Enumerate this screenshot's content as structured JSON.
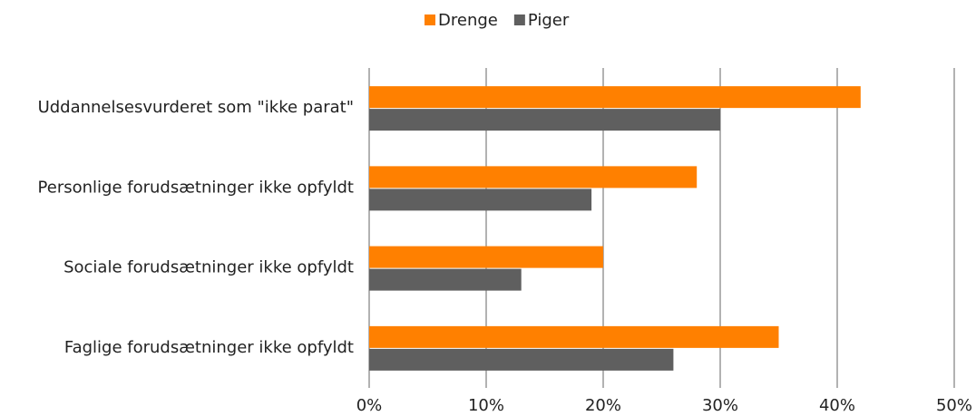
{
  "chart_data": {
    "type": "bar",
    "orientation": "horizontal",
    "categories": [
      "Uddannelsesvurderet som \"ikke parat\"",
      "Personlige forudsætninger ikke opfyldt",
      "Sociale forudsætninger ikke opfyldt",
      "Faglige forudsætninger ikke opfyldt"
    ],
    "series": [
      {
        "name": "Drenge",
        "color": "#ff8000",
        "values": [
          42,
          28,
          20,
          35
        ]
      },
      {
        "name": "Piger",
        "color": "#5f5f5f",
        "values": [
          30,
          19,
          13,
          26
        ]
      }
    ],
    "xlim": [
      0,
      50
    ],
    "xticks": [
      {
        "value": 0,
        "label": "0%"
      },
      {
        "value": 10,
        "label": "10%"
      },
      {
        "value": 20,
        "label": "20%"
      },
      {
        "value": 30,
        "label": "30%"
      },
      {
        "value": 40,
        "label": "40%"
      },
      {
        "value": 50,
        "label": "50%"
      }
    ],
    "grid": true,
    "legend": "top"
  }
}
